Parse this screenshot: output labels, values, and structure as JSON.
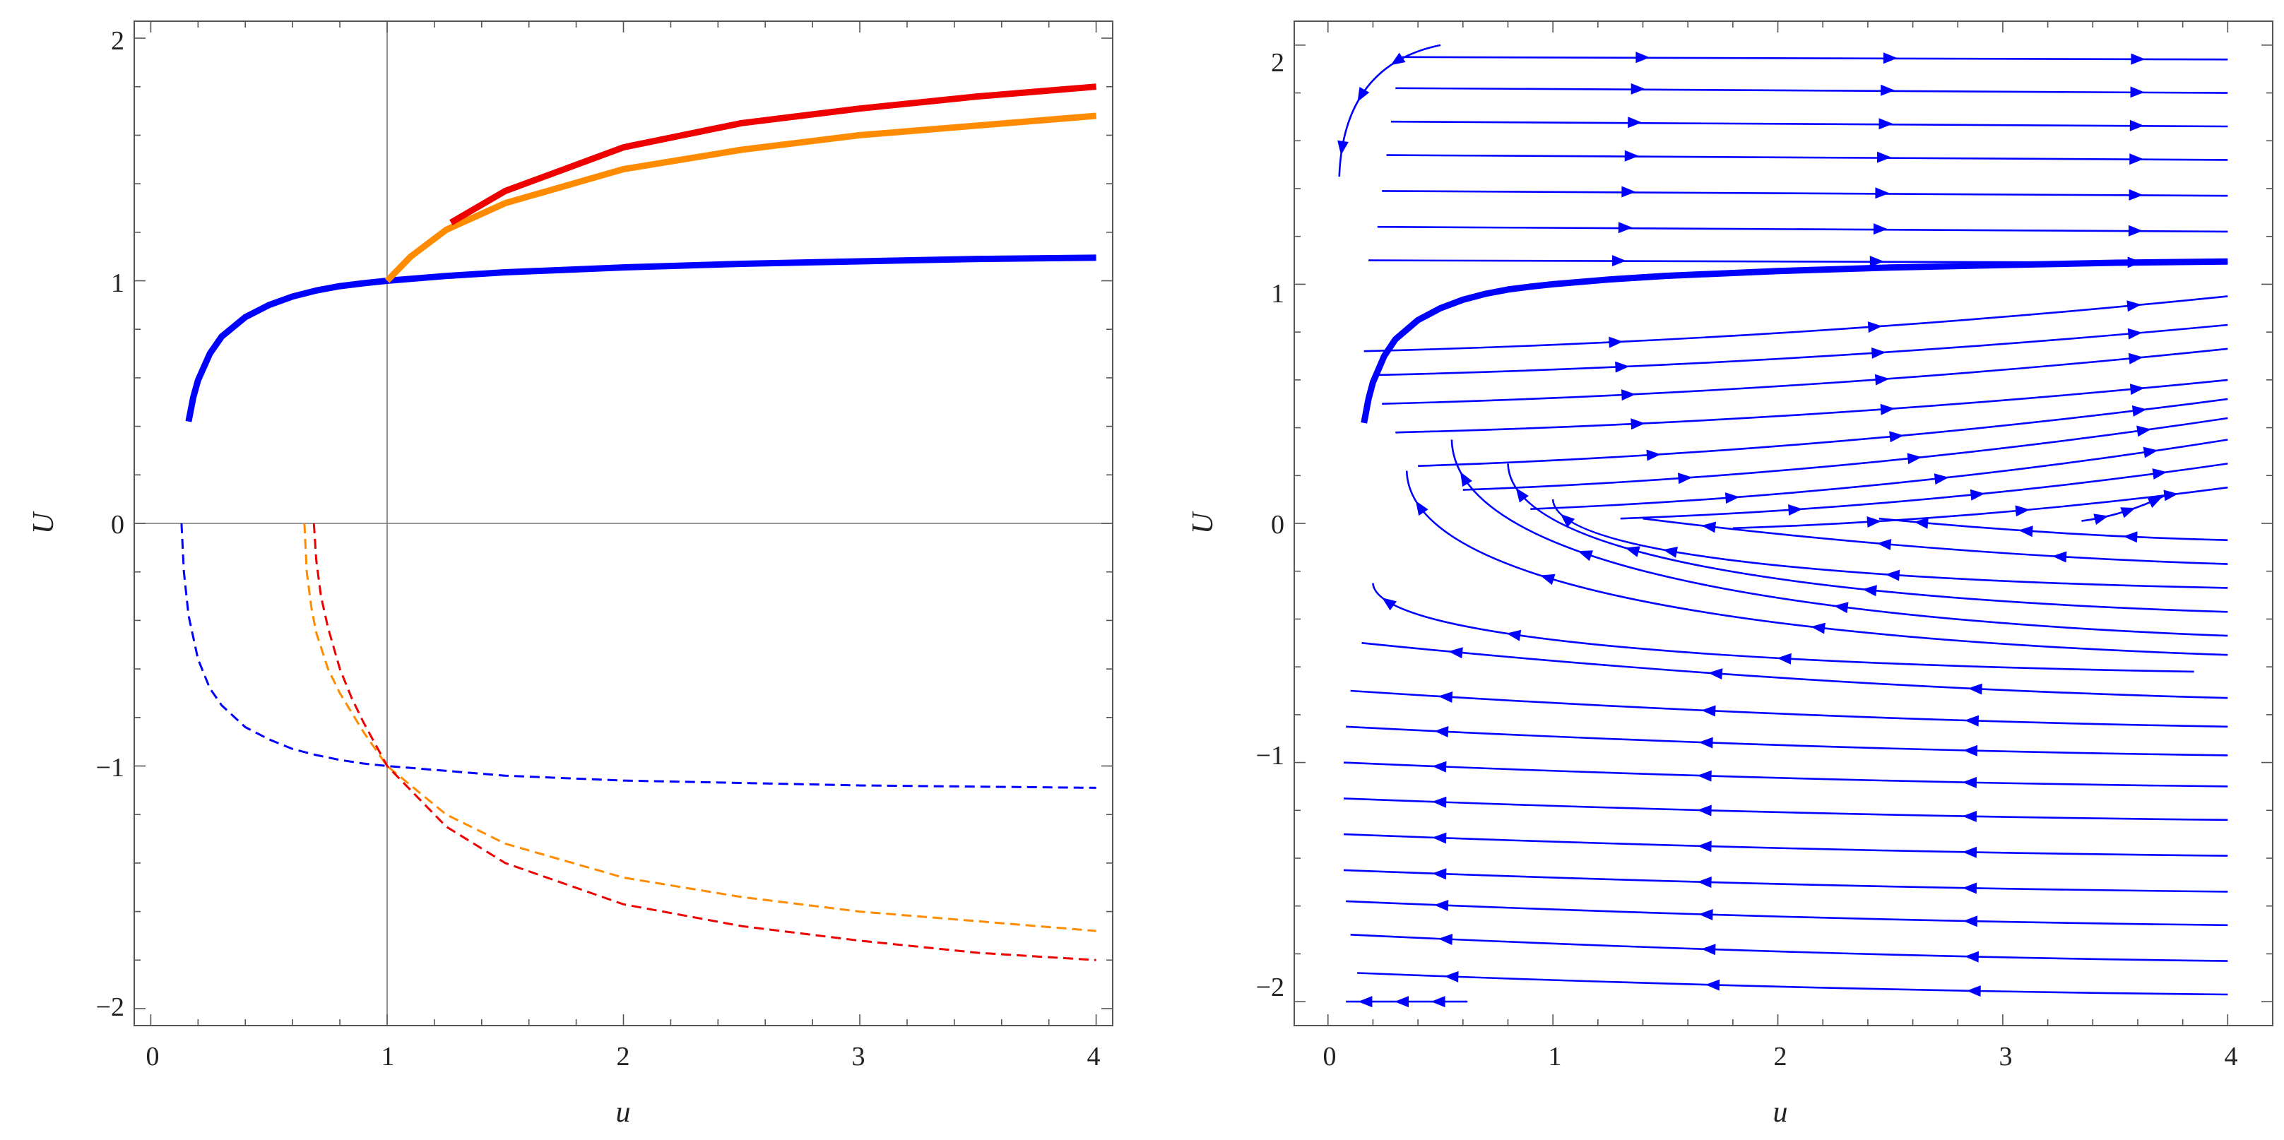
{
  "chart_data": [
    {
      "type": "line",
      "title": "",
      "xlabel": "u",
      "ylabel": "U",
      "xlim": [
        -0.07,
        4.07
      ],
      "ylim": [
        -2.07,
        2.07
      ],
      "xticks": [
        "0",
        "1",
        "2",
        "3",
        "4"
      ],
      "yticks": [
        "−2",
        "−1",
        "0",
        "1",
        "2"
      ],
      "grid": false,
      "legend": "none",
      "reference_lines": {
        "x": 1,
        "y": 0
      },
      "series": [
        {
          "color": "#0000ff",
          "style": "solid-thick",
          "x": [
            0.16,
            0.18,
            0.2,
            0.25,
            0.3,
            0.4,
            0.5,
            0.6,
            0.7,
            0.8,
            0.9,
            1.0,
            1.25,
            1.5,
            2.0,
            2.5,
            3.0,
            3.5,
            4.0
          ],
          "y": [
            0.42,
            0.52,
            0.59,
            0.7,
            0.77,
            0.85,
            0.9,
            0.935,
            0.96,
            0.978,
            0.99,
            1.0,
            1.02,
            1.035,
            1.055,
            1.07,
            1.08,
            1.09,
            1.095
          ]
        },
        {
          "color": "#ff8c00",
          "style": "solid-thick",
          "x": [
            1.0,
            1.1,
            1.25,
            1.5,
            2.0,
            2.5,
            3.0,
            3.5,
            4.0
          ],
          "y": [
            1.0,
            1.1,
            1.21,
            1.32,
            1.46,
            1.54,
            1.6,
            1.64,
            1.68
          ]
        },
        {
          "color": "#ee0000",
          "style": "solid-thick",
          "x": [
            1.27,
            1.5,
            2.0,
            2.5,
            3.0,
            3.5,
            4.0
          ],
          "y": [
            1.24,
            1.37,
            1.55,
            1.65,
            1.71,
            1.76,
            1.8
          ]
        },
        {
          "color": "#0000ff",
          "style": "dashed",
          "x": [
            0.13,
            0.14,
            0.16,
            0.2,
            0.25,
            0.3,
            0.4,
            0.5,
            0.6,
            0.7,
            0.8,
            0.9,
            1.0,
            1.5,
            2.0,
            2.5,
            3.0,
            3.5,
            4.0
          ],
          "y": [
            0.0,
            -0.2,
            -0.38,
            -0.56,
            -0.68,
            -0.75,
            -0.84,
            -0.89,
            -0.93,
            -0.955,
            -0.975,
            -0.99,
            -1.0,
            -1.04,
            -1.06,
            -1.07,
            -1.08,
            -1.085,
            -1.09
          ]
        },
        {
          "color": "#ff8c00",
          "style": "dashed",
          "x": [
            0.65,
            0.66,
            0.68,
            0.7,
            0.75,
            0.8,
            0.9,
            1.0,
            1.25,
            1.5,
            2.0,
            2.5,
            3.0,
            3.5,
            4.0
          ],
          "y": [
            0.0,
            -0.2,
            -0.35,
            -0.45,
            -0.6,
            -0.7,
            -0.86,
            -1.0,
            -1.2,
            -1.32,
            -1.46,
            -1.54,
            -1.6,
            -1.64,
            -1.68
          ]
        },
        {
          "color": "#ee0000",
          "style": "dashed",
          "x": [
            0.69,
            0.7,
            0.72,
            0.75,
            0.8,
            0.85,
            0.9,
            1.0,
            1.25,
            1.5,
            2.0,
            2.5,
            3.0,
            3.5,
            4.0
          ],
          "y": [
            0.0,
            -0.15,
            -0.3,
            -0.43,
            -0.6,
            -0.72,
            -0.82,
            -1.0,
            -1.25,
            -1.4,
            -1.57,
            -1.66,
            -1.72,
            -1.77,
            -1.8
          ]
        }
      ]
    },
    {
      "type": "stream",
      "title": "",
      "xlabel": "u",
      "ylabel": "U",
      "xlim": [
        -0.15,
        4.2
      ],
      "ylim": [
        -2.1,
        2.1
      ],
      "xticks": [
        "0",
        "1",
        "2",
        "3",
        "4"
      ],
      "yticks": [
        "−2",
        "−1",
        "0",
        "1",
        "2"
      ],
      "grid": false,
      "legend": "none",
      "stream_color": "#0000ff",
      "highlight_series": {
        "color": "#0000ff",
        "style": "solid-thick",
        "x": [
          0.16,
          0.18,
          0.2,
          0.25,
          0.3,
          0.4,
          0.5,
          0.6,
          0.7,
          0.8,
          0.9,
          1.0,
          1.25,
          1.5,
          2.0,
          2.5,
          3.0,
          3.5,
          4.0
        ],
        "y": [
          0.42,
          0.52,
          0.59,
          0.7,
          0.77,
          0.85,
          0.9,
          0.935,
          0.96,
          0.978,
          0.99,
          1.0,
          1.02,
          1.035,
          1.055,
          1.07,
          1.08,
          1.09,
          1.095
        ]
      },
      "upper_streams": [
        {
          "start": [
            0.5,
            2.0
          ],
          "end": [
            0.05,
            1.45
          ]
        },
        {
          "start": [
            0.33,
            1.95
          ],
          "end": [
            4.0,
            1.94
          ]
        },
        {
          "start": [
            0.3,
            1.82
          ],
          "end": [
            4.0,
            1.8
          ]
        },
        {
          "start": [
            0.28,
            1.68
          ],
          "end": [
            4.0,
            1.66
          ]
        },
        {
          "start": [
            0.26,
            1.54
          ],
          "end": [
            4.0,
            1.52
          ]
        },
        {
          "start": [
            0.24,
            1.39
          ],
          "end": [
            4.0,
            1.37
          ]
        },
        {
          "start": [
            0.22,
            1.24
          ],
          "end": [
            4.0,
            1.22
          ]
        },
        {
          "start": [
            0.18,
            1.1
          ],
          "end": [
            4.0,
            1.09
          ]
        },
        {
          "start": [
            0.16,
            0.72
          ],
          "end": [
            4.0,
            0.95
          ]
        },
        {
          "start": [
            0.2,
            0.62
          ],
          "end": [
            4.0,
            0.83
          ]
        },
        {
          "start": [
            0.24,
            0.5
          ],
          "end": [
            4.0,
            0.73
          ]
        },
        {
          "start": [
            0.3,
            0.38
          ],
          "end": [
            4.0,
            0.6
          ]
        },
        {
          "start": [
            0.4,
            0.24
          ],
          "end": [
            4.0,
            0.52
          ]
        },
        {
          "start": [
            0.6,
            0.14
          ],
          "end": [
            4.0,
            0.44
          ]
        },
        {
          "start": [
            0.9,
            0.06
          ],
          "end": [
            4.0,
            0.35
          ]
        },
        {
          "start": [
            1.3,
            0.02
          ],
          "end": [
            4.0,
            0.25
          ]
        },
        {
          "start": [
            1.8,
            -0.02
          ],
          "end": [
            4.0,
            0.15
          ]
        },
        {
          "start": [
            3.35,
            0.01
          ],
          "end": [
            3.75,
            0.13
          ]
        }
      ],
      "lower_streams": [
        {
          "start": [
            4.0,
            -0.07
          ],
          "end": [
            2.45,
            0.02
          ]
        },
        {
          "start": [
            4.0,
            -0.17
          ],
          "end": [
            1.4,
            0.02
          ]
        },
        {
          "start": [
            4.0,
            -0.27
          ],
          "end": [
            1.0,
            0.1
          ]
        },
        {
          "start": [
            4.0,
            -0.37
          ],
          "end": [
            0.8,
            0.25
          ]
        },
        {
          "start": [
            4.0,
            -0.47
          ],
          "end": [
            0.55,
            0.35
          ]
        },
        {
          "start": [
            4.0,
            -0.55
          ],
          "end": [
            0.35,
            0.22
          ]
        },
        {
          "start": [
            3.85,
            -0.62
          ],
          "end": [
            0.2,
            -0.25
          ]
        },
        {
          "start": [
            4.0,
            -0.73
          ],
          "end": [
            0.15,
            -0.5
          ]
        },
        {
          "start": [
            4.0,
            -0.85
          ],
          "end": [
            0.1,
            -0.7
          ]
        },
        {
          "start": [
            4.0,
            -0.97
          ],
          "end": [
            0.08,
            -0.85
          ]
        },
        {
          "start": [
            4.0,
            -1.1
          ],
          "end": [
            0.07,
            -1.0
          ]
        },
        {
          "start": [
            4.0,
            -1.24
          ],
          "end": [
            0.07,
            -1.15
          ]
        },
        {
          "start": [
            4.0,
            -1.39
          ],
          "end": [
            0.07,
            -1.3
          ]
        },
        {
          "start": [
            4.0,
            -1.54
          ],
          "end": [
            0.07,
            -1.45
          ]
        },
        {
          "start": [
            4.0,
            -1.68
          ],
          "end": [
            0.08,
            -1.58
          ]
        },
        {
          "start": [
            4.0,
            -1.83
          ],
          "end": [
            0.1,
            -1.72
          ]
        },
        {
          "start": [
            4.0,
            -1.97
          ],
          "end": [
            0.13,
            -1.88
          ]
        },
        {
          "start": [
            0.62,
            -2.0
          ],
          "end": [
            0.08,
            -2.0
          ]
        }
      ]
    }
  ]
}
